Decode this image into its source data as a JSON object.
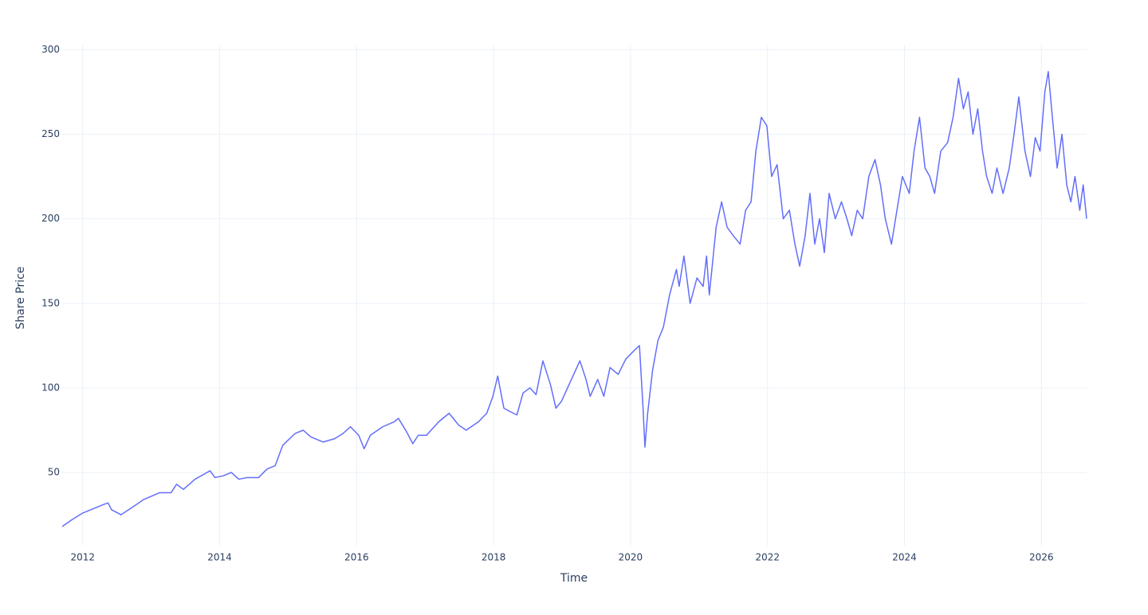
{
  "chart_data": {
    "type": "line",
    "x_label": "Time",
    "y_label": "Share Price",
    "xlim": [
      2011.7,
      2026.66
    ],
    "ylim": [
      6.7,
      302.5
    ],
    "xticks": [
      2012,
      2014,
      2016,
      2018,
      2020,
      2022,
      2024,
      2026
    ],
    "yticks": [
      50,
      100,
      150,
      200,
      250,
      300
    ],
    "grid": true,
    "series": [
      {
        "name": "Share Price",
        "color": "#636efa",
        "x": [
          2011.7,
          2011.84,
          2012.0,
          2012.3,
          2012.37,
          2012.42,
          2012.56,
          2012.71,
          2012.89,
          2013.12,
          2013.29,
          2013.37,
          2013.47,
          2013.64,
          2013.86,
          2013.93,
          2014.05,
          2014.17,
          2014.28,
          2014.4,
          2014.57,
          2014.69,
          2014.81,
          2014.92,
          2015.1,
          2015.22,
          2015.33,
          2015.51,
          2015.68,
          2015.8,
          2015.91,
          2016.03,
          2016.11,
          2016.2,
          2016.38,
          2016.55,
          2016.61,
          2016.73,
          2016.82,
          2016.9,
          2017.02,
          2017.2,
          2017.35,
          2017.49,
          2017.6,
          2017.78,
          2017.9,
          2017.99,
          2018.06,
          2018.15,
          2018.24,
          2018.34,
          2018.43,
          2018.53,
          2018.62,
          2018.72,
          2018.83,
          2018.91,
          2018.99,
          2019.08,
          2019.17,
          2019.26,
          2019.35,
          2019.41,
          2019.52,
          2019.61,
          2019.7,
          2019.82,
          2019.93,
          2020.05,
          2020.13,
          2020.18,
          2020.21,
          2020.25,
          2020.32,
          2020.4,
          2020.48,
          2020.57,
          2020.67,
          2020.71,
          2020.78,
          2020.87,
          2020.97,
          2021.06,
          2021.11,
          2021.15,
          2021.25,
          2021.33,
          2021.41,
          2021.5,
          2021.6,
          2021.68,
          2021.76,
          2021.83,
          2021.91,
          2021.99,
          2022.06,
          2022.14,
          2022.23,
          2022.32,
          2022.4,
          2022.47,
          2022.55,
          2022.62,
          2022.69,
          2022.76,
          2022.83,
          2022.9,
          2022.99,
          2023.08,
          2023.16,
          2023.23,
          2023.31,
          2023.39,
          2023.48,
          2023.57,
          2023.65,
          2023.72,
          2023.81,
          2023.89,
          2023.97,
          2024.07,
          2024.14,
          2024.22,
          2024.3,
          2024.37,
          2024.44,
          2024.53,
          2024.63,
          2024.71,
          2024.79,
          2024.86,
          2024.93,
          2025.0,
          2025.07,
          2025.14,
          2025.2,
          2025.28,
          2025.35,
          2025.44,
          2025.53,
          2025.6,
          2025.67,
          2025.76,
          2025.84,
          2025.91,
          2025.98,
          2026.05,
          2026.1,
          2026.16,
          2026.23,
          2026.3,
          2026.37,
          2026.43,
          2026.49,
          2026.56,
          2026.61,
          2026.66
        ],
        "values": [
          18,
          22,
          26,
          31,
          32,
          28,
          25,
          29,
          34,
          38,
          38,
          43,
          40,
          46,
          51,
          47,
          48,
          50,
          46,
          47,
          47,
          52,
          54,
          66,
          73,
          75,
          71,
          68,
          70,
          73,
          77,
          72,
          64,
          72,
          77,
          80,
          82,
          74,
          67,
          72,
          72,
          80,
          85,
          78,
          75,
          80,
          85,
          95,
          107,
          88,
          86,
          84,
          97,
          100,
          96,
          116,
          102,
          88,
          92,
          100,
          108,
          116,
          105,
          95,
          105,
          95,
          112,
          108,
          117,
          122,
          125,
          90,
          65,
          85,
          110,
          128,
          136,
          155,
          170,
          160,
          178,
          150,
          165,
          160,
          178,
          155,
          195,
          210,
          195,
          190,
          185,
          205,
          210,
          240,
          260,
          255,
          225,
          232,
          200,
          205,
          185,
          172,
          190,
          215,
          185,
          200,
          180,
          215,
          200,
          210,
          200,
          190,
          205,
          200,
          225,
          235,
          220,
          200,
          185,
          205,
          225,
          215,
          240,
          260,
          230,
          225,
          215,
          240,
          245,
          260,
          283,
          265,
          275,
          250,
          265,
          240,
          225,
          215,
          230,
          215,
          230,
          250,
          272,
          240,
          225,
          248,
          240,
          275,
          287,
          260,
          230,
          250,
          220,
          210,
          225,
          205,
          220,
          200
        ]
      }
    ]
  }
}
